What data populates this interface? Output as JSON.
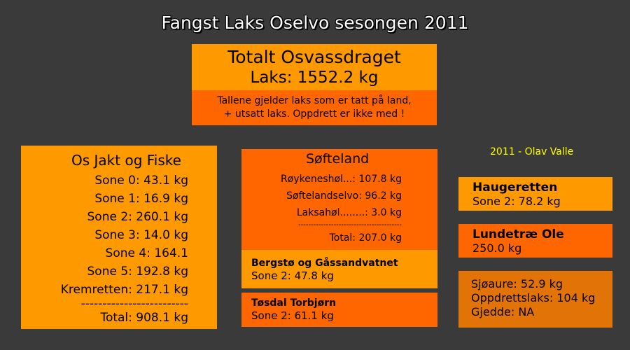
{
  "title": "Fangst Laks Oselvo sesongen 2011",
  "total": {
    "heading": "Totalt Osvassdraget",
    "value": "Laks: 1552.2 kg",
    "note_line1": "Tallene gjelder laks som er tatt på land,",
    "note_line2": "+ utsatt laks. Oppdrett er ikke med !"
  },
  "os_jakt": {
    "heading": "Os Jakt og Fiske",
    "rows": [
      "Sone 0: 43.1 kg",
      "Sone 1: 16.9 kg",
      "Sone 2: 260.1 kg",
      "Sone 3: 14.0 kg",
      "Sone 4: 164.1",
      "Sone 5: 192.8 kg",
      "Kremretten: 217.1 kg",
      "-------------------------",
      "Total: 908.1 kg"
    ]
  },
  "softeland": {
    "heading": "Søfteland",
    "rows": [
      "Røykeneshøl...: 107.8 kg",
      "Søftelandselvo:  96.2 kg",
      "Laksahøl........:   3.0 kg",
      "-----------------------------------------",
      "Total: 207.0 kg"
    ]
  },
  "bergsto": {
    "title": "Bergstø og Gåssandvatnet",
    "line": "Sone 2: 47.8 kg"
  },
  "tosdal": {
    "title": "Tøsdal Torbjørn",
    "line": "Sone 2: 61.1 kg"
  },
  "credit": "2011 - Olav Valle",
  "haugeretten": {
    "title": "Haugeretten",
    "line": "Sone 2: 78.2 kg"
  },
  "lundetrae": {
    "title": "Lundetræ Ole",
    "line": "250.0 kg"
  },
  "other": {
    "lines": [
      "Sjøaure: 52.9 kg",
      "Oppdrettslaks: 104 kg",
      "Gjedde: NA"
    ]
  }
}
